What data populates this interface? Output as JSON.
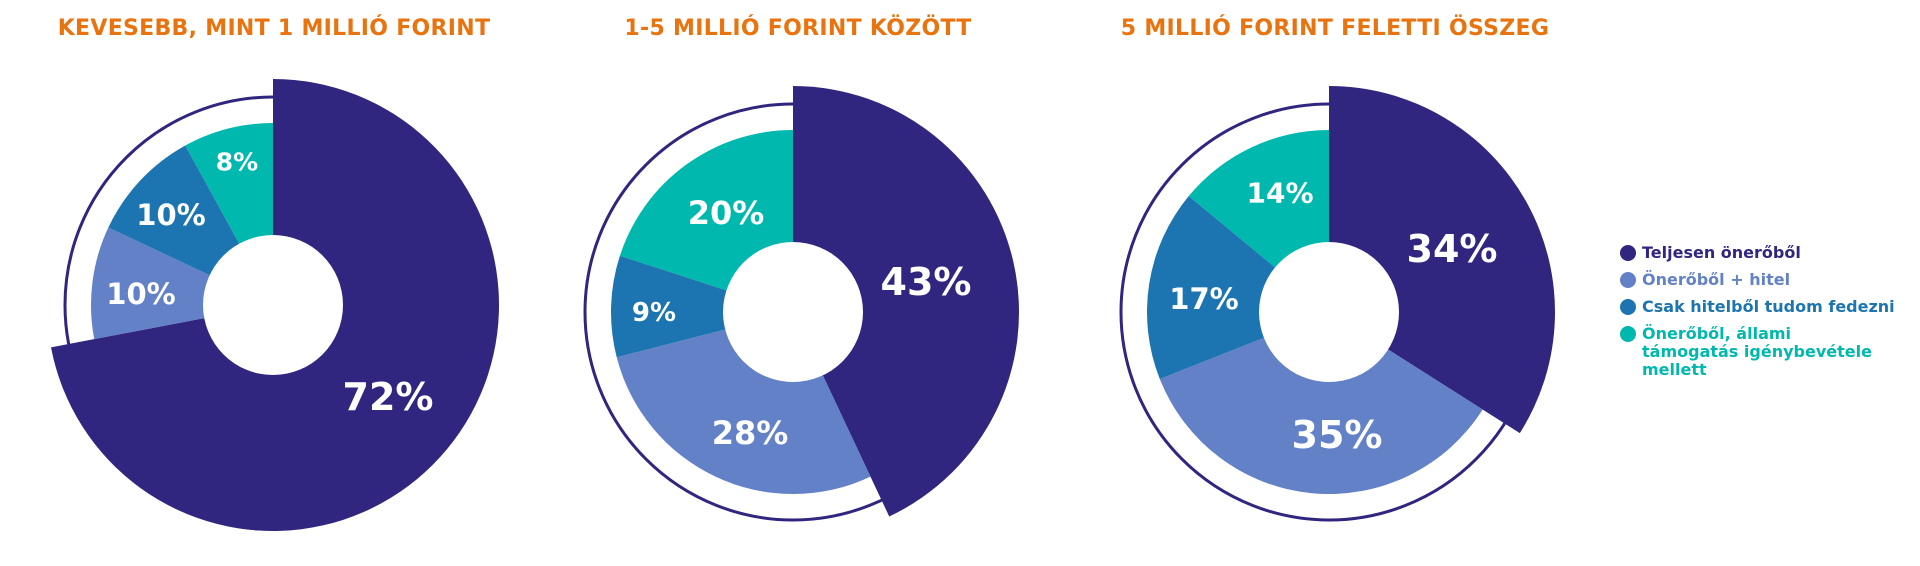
{
  "chart_data": [
    {
      "type": "pie",
      "title": "KEVESEBB, MINT 1 MILLIÓ FORINT",
      "categories": [
        "Teljesen önerőből",
        "Önerőből + hitel",
        "Csak hitelből tudom fedezni",
        "Önerőből, állami támogatás igénybevétele mellett"
      ],
      "values": [
        72,
        10,
        10,
        8
      ],
      "labels": [
        "72%",
        "10%",
        "10%",
        "8%"
      ]
    },
    {
      "type": "pie",
      "title": "1-5 MILLIÓ FORINT KÖZÖTT",
      "categories": [
        "Teljesen önerőből",
        "Önerőből + hitel",
        "Csak hitelből tudom fedezni",
        "Önerőből, állami támogatás igénybevétele mellett"
      ],
      "values": [
        43,
        28,
        9,
        20
      ],
      "labels": [
        "43%",
        "28%",
        "9%",
        "20%"
      ]
    },
    {
      "type": "pie",
      "title": "5 MILLIÓ FORINT FELETTI ÖSSZEG",
      "categories": [
        "Teljesen önerőből",
        "Önerőből + hitel",
        "Csak hitelből tudom fedezni",
        "Önerőből, állami támogatás igénybevétele mellett"
      ],
      "values": [
        34,
        35,
        17,
        14
      ],
      "labels": [
        "34%",
        "35%",
        "17%",
        "14%"
      ]
    }
  ],
  "legend": {
    "placement": "right",
    "items": [
      {
        "label": "Teljesen önerőből",
        "color": "#30267f"
      },
      {
        "label": "Önerőből + hitel",
        "color": "#6381c7"
      },
      {
        "label": "Csak hitelből tudom fedezni",
        "color": "#1c75b0"
      },
      {
        "label": "Önerőből, állami támogatás igénybevétele mellett",
        "color": "#00b8ad"
      }
    ]
  },
  "colors": {
    "title": "#e8730f",
    "outline": "#30267f"
  }
}
